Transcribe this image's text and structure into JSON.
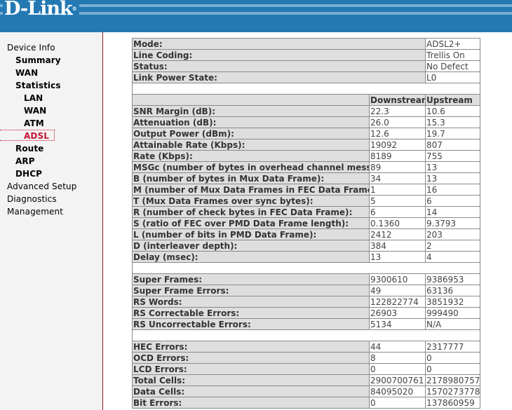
{
  "header": {
    "logo": "D-Link",
    "colors": {
      "banner": "#2479b3",
      "active_nav": "#c8102e",
      "sidebar_border": "#8b1a2b"
    }
  },
  "sidebar": {
    "items": [
      {
        "label": "Device Info",
        "level": 1
      },
      {
        "label": "Summary",
        "level": 2
      },
      {
        "label": "WAN",
        "level": 2
      },
      {
        "label": "Statistics",
        "level": 2
      },
      {
        "label": "LAN",
        "level": 3
      },
      {
        "label": "WAN",
        "level": 3
      },
      {
        "label": "ATM",
        "level": 3
      },
      {
        "label": "ADSL",
        "level": 3,
        "active": true
      },
      {
        "label": "Route",
        "level": 2
      },
      {
        "label": "ARP",
        "level": 2
      },
      {
        "label": "DHCP",
        "level": 2
      },
      {
        "label": "Advanced Setup",
        "level": 1
      },
      {
        "label": "Diagnostics",
        "level": 1
      },
      {
        "label": "Management",
        "level": 1
      }
    ]
  },
  "status": [
    {
      "label": "Mode:",
      "value": "ADSL2+"
    },
    {
      "label": "Line Coding:",
      "value": "Trellis On"
    },
    {
      "label": "Status:",
      "value": "No Defect"
    },
    {
      "label": "Link Power State:",
      "value": "L0"
    }
  ],
  "columns": {
    "downstream": "Downstream",
    "upstream": "Upstream"
  },
  "groups": [
    [
      {
        "label": "SNR Margin (dB):",
        "down": "22.3",
        "up": "10.6"
      },
      {
        "label": "Attenuation (dB):",
        "down": "26.0",
        "up": "15.3"
      },
      {
        "label": "Output Power (dBm):",
        "down": "12.6",
        "up": "19.7"
      },
      {
        "label": "Attainable Rate (Kbps):",
        "down": "19092",
        "up": "807"
      },
      {
        "label": "Rate (Kbps):",
        "down": "8189",
        "up": "755"
      },
      {
        "label": "MSGc (number of bytes in overhead channel message):",
        "down": "89",
        "up": "13"
      },
      {
        "label": "B (number of bytes in Mux Data Frame):",
        "down": "34",
        "up": "13"
      },
      {
        "label": "M (number of Mux Data Frames in FEC Data Frame):",
        "down": "1",
        "up": "16"
      },
      {
        "label": "T (Mux Data Frames over sync bytes):",
        "down": "5",
        "up": "6"
      },
      {
        "label": "R (number of check bytes in FEC Data Frame):",
        "down": "6",
        "up": "14"
      },
      {
        "label": "S (ratio of FEC over PMD Data Frame length):",
        "down": "0.1360",
        "up": "9.3793"
      },
      {
        "label": "L (number of bits in PMD Data Frame):",
        "down": "2412",
        "up": "203"
      },
      {
        "label": "D (interleaver depth):",
        "down": "384",
        "up": "2"
      },
      {
        "label": "Delay (msec):",
        "down": "13",
        "up": "4"
      }
    ],
    [
      {
        "label": "Super Frames:",
        "down": "9300610",
        "up": "9386953"
      },
      {
        "label": "Super Frame Errors:",
        "down": "49",
        "up": "63136"
      },
      {
        "label": "RS Words:",
        "down": "122822774",
        "up": "3851932"
      },
      {
        "label": "RS Correctable Errors:",
        "down": "26903",
        "up": "999490"
      },
      {
        "label": "RS Uncorrectable Errors:",
        "down": "5134",
        "up": "N/A"
      }
    ],
    [
      {
        "label": "HEC Errors:",
        "down": "44",
        "up": "2317777"
      },
      {
        "label": "OCD Errors:",
        "down": "8",
        "up": "0"
      },
      {
        "label": "LCD Errors:",
        "down": "0",
        "up": "0"
      },
      {
        "label": "Total Cells:",
        "down": "2900700761",
        "up": "2178980757"
      },
      {
        "label": "Data Cells:",
        "down": "84095020",
        "up": "1570273778"
      },
      {
        "label": "Bit Errors:",
        "down": "0",
        "up": "137860959"
      }
    ]
  ]
}
